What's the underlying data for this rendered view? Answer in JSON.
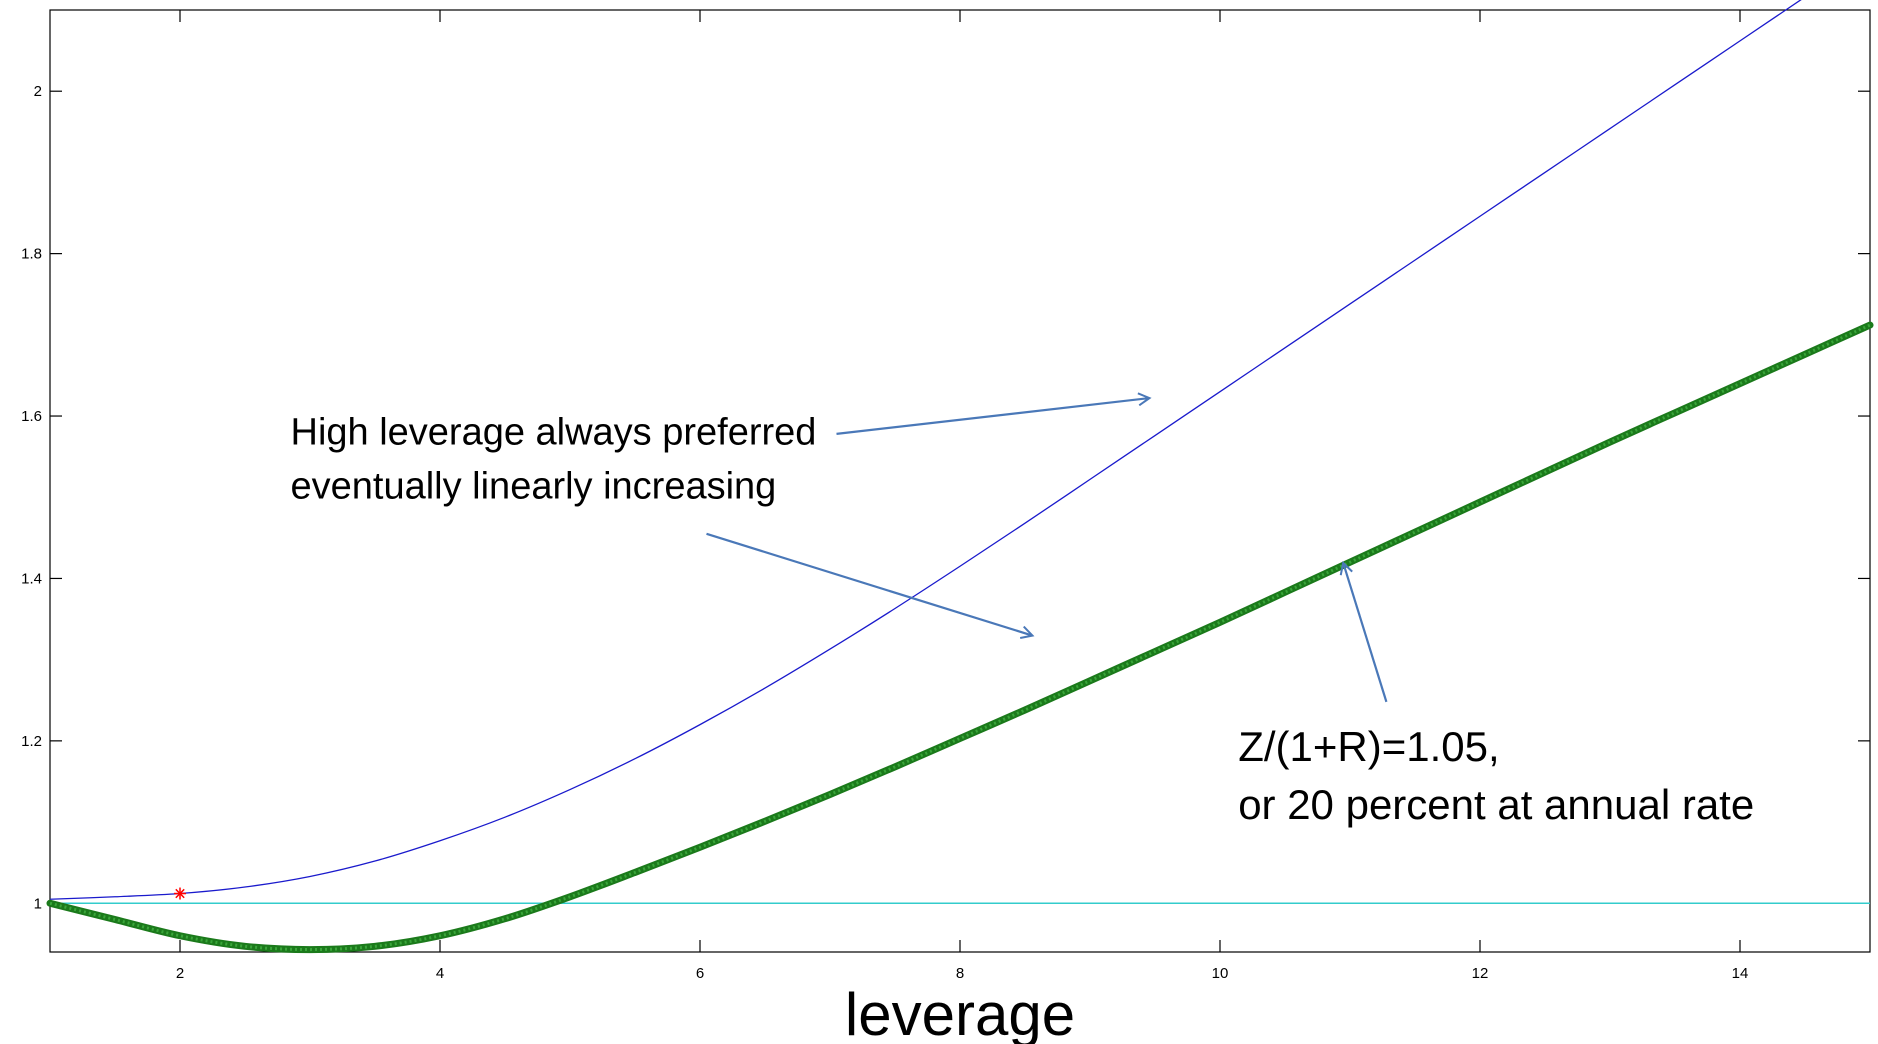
{
  "chart_data": {
    "type": "line",
    "title": "",
    "xlabel": "leverage",
    "ylabel": "",
    "xlim": [
      1,
      15
    ],
    "ylim": [
      0.94,
      2.1
    ],
    "xticks": [
      2,
      4,
      6,
      8,
      10,
      12,
      14
    ],
    "yticks": [
      1,
      1.2,
      1.4,
      1.6,
      1.8,
      2
    ],
    "grid": false,
    "series": [
      {
        "color": "#1a1acc",
        "style": "thin-line",
        "x": [
          1,
          1.5,
          2,
          2.5,
          3,
          3.5,
          4,
          4.5,
          5,
          5.5,
          6,
          6.5,
          7,
          7.5,
          8,
          8.5,
          9,
          9.5,
          10,
          10.5,
          11,
          11.5,
          12,
          12.5,
          13,
          13.5,
          14,
          14.5,
          15
        ],
        "y": [
          1.005,
          1.008,
          1.012,
          1.02,
          1.033,
          1.052,
          1.077,
          1.106,
          1.14,
          1.178,
          1.22,
          1.265,
          1.313,
          1.363,
          1.415,
          1.468,
          1.522,
          1.576,
          1.63,
          1.684,
          1.738,
          1.792,
          1.846,
          1.9,
          1.954,
          2.008,
          2.062,
          2.116,
          2.17
        ]
      },
      {
        "color": "#1b7a1b",
        "style": "thick-line-with-star-markers",
        "x": [
          1,
          1.5,
          2,
          2.5,
          3,
          3.5,
          4,
          4.5,
          5,
          5.5,
          6,
          6.5,
          7,
          7.5,
          8,
          8.5,
          9,
          9.5,
          10,
          10.5,
          11,
          11.5,
          12,
          12.5,
          13,
          13.5,
          14,
          14.5,
          15
        ],
        "y": [
          1.0,
          0.98,
          0.96,
          0.947,
          0.943,
          0.947,
          0.96,
          0.981,
          1.008,
          1.038,
          1.069,
          1.101,
          1.134,
          1.168,
          1.203,
          1.238,
          1.274,
          1.31,
          1.346,
          1.383,
          1.42,
          1.457,
          1.494,
          1.531,
          1.568,
          1.604,
          1.64,
          1.676,
          1.712
        ]
      },
      {
        "color": "#33cccc",
        "style": "reference-line",
        "x": [
          1,
          15
        ],
        "y": [
          1.0,
          1.0
        ]
      }
    ],
    "points": [
      {
        "x": 2,
        "y": 1.012,
        "color": "#ff0000",
        "marker": "star"
      }
    ],
    "annotations": [
      {
        "lines": [
          "High leverage always preferred",
          "eventually linearly increasing"
        ],
        "at": [
          2.85,
          1.565
        ],
        "arrows": [
          {
            "from": [
              7.05,
              1.578
            ],
            "to": [
              9.45,
              1.622
            ]
          },
          {
            "from": [
              6.05,
              1.455
            ],
            "to": [
              8.55,
              1.33
            ]
          }
        ]
      },
      {
        "lines": [
          "Z/(1+R)=1.05,",
          "or 20 percent at annual rate"
        ],
        "at": [
          10.14,
          1.175
        ],
        "arrows": [
          {
            "from": [
              11.28,
              1.248
            ],
            "to": [
              10.95,
              1.418
            ]
          }
        ]
      }
    ]
  }
}
